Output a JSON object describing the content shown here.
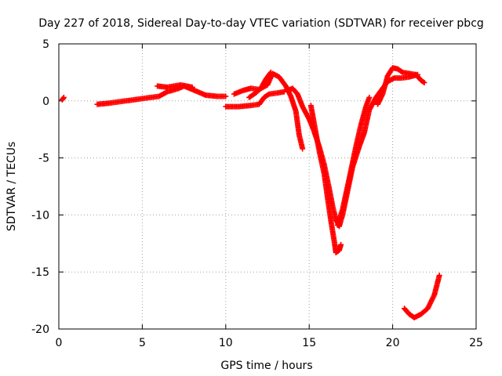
{
  "chart_data": {
    "type": "scatter",
    "title": "Day 227 of 2018, Sidereal Day-to-day VTEC variation (SDTVAR) for receiver pbcg",
    "xlabel": "GPS time / hours",
    "ylabel": "SDTVAR / TECUs",
    "xlim": [
      0,
      25
    ],
    "ylim": [
      -20,
      5
    ],
    "grid": true,
    "marker": "plus",
    "xticks": [
      0,
      5,
      10,
      15,
      20,
      25
    ],
    "yticks": [
      5,
      0,
      -5,
      -10,
      -15,
      -20
    ],
    "xtick_labels": [
      "0",
      "5",
      "10",
      "15",
      "20",
      "25"
    ],
    "ytick_labels": [
      "5",
      "0",
      "-5",
      "-10",
      "-15",
      "-20"
    ],
    "series": [
      {
        "name": "SDTVAR",
        "color": "#ff0000",
        "segments": [
          [
            [
              0.2,
              0.1
            ],
            [
              0.3,
              0.3
            ]
          ],
          [
            [
              2.3,
              -0.3
            ],
            [
              3.0,
              -0.2
            ],
            [
              4.0,
              0.0
            ],
            [
              5.0,
              0.2
            ],
            [
              6.0,
              0.4
            ],
            [
              6.5,
              0.8
            ],
            [
              7.2,
              1.1
            ],
            [
              7.5,
              1.3
            ],
            [
              8.0,
              1.0
            ],
            [
              8.8,
              0.5
            ],
            [
              9.5,
              0.4
            ],
            [
              10.0,
              0.4
            ]
          ],
          [
            [
              5.9,
              1.3
            ],
            [
              6.5,
              1.2
            ],
            [
              7.3,
              1.4
            ],
            [
              8.0,
              1.2
            ]
          ],
          [
            [
              10.0,
              -0.5
            ],
            [
              10.8,
              -0.5
            ],
            [
              11.5,
              -0.4
            ],
            [
              12.0,
              -0.3
            ],
            [
              12.3,
              0.3
            ],
            [
              12.6,
              0.6
            ],
            [
              13.1,
              0.7
            ],
            [
              13.5,
              0.8
            ]
          ],
          [
            [
              10.5,
              0.6
            ],
            [
              11.0,
              0.9
            ],
            [
              11.5,
              1.1
            ],
            [
              12.0,
              1.0
            ],
            [
              12.5,
              1.4
            ],
            [
              12.8,
              2.4
            ],
            [
              13.2,
              2.1
            ],
            [
              13.6,
              1.3
            ],
            [
              13.9,
              0.4
            ],
            [
              14.2,
              -0.9
            ],
            [
              14.4,
              -3.0
            ],
            [
              14.6,
              -4.2
            ]
          ],
          [
            [
              11.4,
              0.3
            ],
            [
              11.8,
              0.7
            ],
            [
              12.1,
              1.1
            ],
            [
              12.4,
              1.9
            ],
            [
              12.7,
              2.5
            ]
          ],
          [
            [
              13.7,
              0.9
            ],
            [
              14.0,
              1.1
            ],
            [
              14.3,
              0.6
            ],
            [
              14.6,
              -0.5
            ],
            [
              15.0,
              -1.6
            ],
            [
              15.3,
              -2.7
            ],
            [
              15.6,
              -4.0
            ],
            [
              15.9,
              -5.6
            ],
            [
              16.2,
              -7.7
            ],
            [
              16.4,
              -9.2
            ],
            [
              16.6,
              -10.4
            ],
            [
              16.8,
              -11.0
            ],
            [
              17.0,
              -10.0
            ],
            [
              17.3,
              -7.9
            ],
            [
              17.6,
              -5.8
            ],
            [
              18.0,
              -4.0
            ],
            [
              18.3,
              -2.8
            ],
            [
              18.6,
              -0.8
            ],
            [
              19.0,
              0.3
            ],
            [
              19.3,
              0.9
            ],
            [
              19.7,
              1.7
            ],
            [
              20.1,
              2.0
            ],
            [
              20.5,
              2.0
            ],
            [
              21.0,
              2.1
            ],
            [
              21.5,
              2.3
            ]
          ],
          [
            [
              15.1,
              -0.4
            ],
            [
              15.3,
              -2.0
            ],
            [
              15.6,
              -4.4
            ],
            [
              15.9,
              -6.4
            ],
            [
              16.1,
              -8.5
            ],
            [
              16.3,
              -10.5
            ],
            [
              16.5,
              -12.3
            ],
            [
              16.6,
              -13.3
            ],
            [
              16.8,
              -13.1
            ],
            [
              16.9,
              -12.6
            ]
          ],
          [
            [
              16.7,
              -10.9
            ],
            [
              17.0,
              -9.5
            ],
            [
              17.4,
              -6.8
            ],
            [
              17.8,
              -4.0
            ],
            [
              18.1,
              -2.1
            ],
            [
              18.4,
              -0.5
            ],
            [
              18.6,
              0.3
            ]
          ],
          [
            [
              19.1,
              -0.3
            ],
            [
              19.4,
              0.6
            ],
            [
              19.7,
              2.2
            ],
            [
              20.0,
              2.9
            ],
            [
              20.3,
              2.8
            ],
            [
              20.6,
              2.5
            ],
            [
              21.0,
              2.4
            ],
            [
              21.4,
              2.3
            ],
            [
              21.7,
              1.8
            ],
            [
              21.9,
              1.6
            ]
          ],
          [
            [
              20.7,
              -18.2
            ],
            [
              21.0,
              -18.7
            ],
            [
              21.3,
              -19.0
            ],
            [
              21.7,
              -18.7
            ],
            [
              22.1,
              -18.2
            ],
            [
              22.5,
              -17.0
            ],
            [
              22.8,
              -15.3
            ]
          ]
        ]
      }
    ]
  }
}
